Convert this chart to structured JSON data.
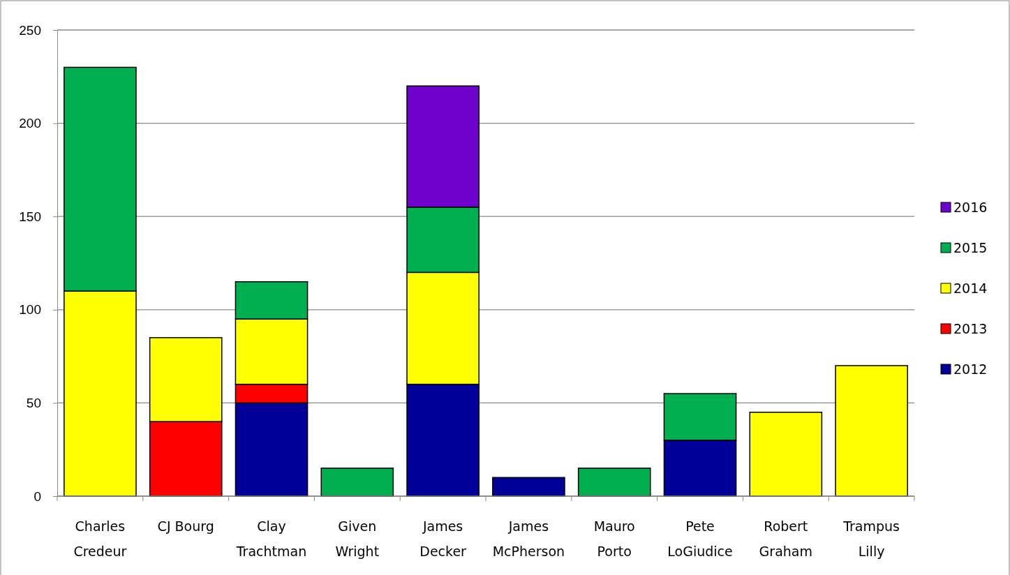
{
  "chart_data": {
    "type": "bar",
    "stacked": true,
    "categories": [
      "Charles\nCredeur",
      "CJ Bourg",
      "Clay\nTrachtman",
      "Given\nWright",
      "James\nDecker",
      "James\nMcPherson",
      "Mauro\nPorto",
      "Pete\nLoGiudice",
      "Robert\nGraham",
      "Trampus\nLilly"
    ],
    "series": [
      {
        "name": "2012",
        "color": "#000099",
        "values": [
          null,
          null,
          50,
          null,
          60,
          10,
          null,
          30,
          null,
          null
        ]
      },
      {
        "name": "2013",
        "color": "#ff0000",
        "values": [
          null,
          40,
          10,
          null,
          null,
          null,
          null,
          null,
          null,
          null
        ]
      },
      {
        "name": "2014",
        "color": "#ffff00",
        "values": [
          110,
          45,
          35,
          null,
          60,
          null,
          null,
          null,
          45,
          70
        ]
      },
      {
        "name": "2015",
        "color": "#00b050",
        "values": [
          120,
          null,
          20,
          15,
          35,
          null,
          15,
          25,
          null,
          null
        ]
      },
      {
        "name": "2016",
        "color": "#7000cc",
        "values": [
          null,
          null,
          null,
          null,
          65,
          null,
          null,
          null,
          null,
          null
        ]
      }
    ],
    "ylim": [
      0,
      250
    ],
    "yticks": [
      0,
      50,
      100,
      150,
      200,
      250
    ],
    "grid": "y",
    "legend": "right"
  }
}
